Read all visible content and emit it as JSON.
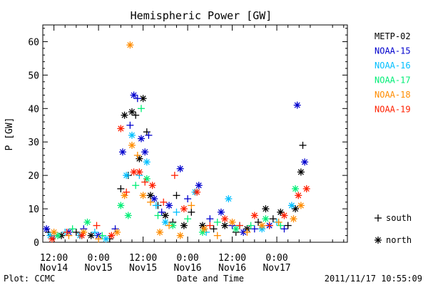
{
  "chart_data": {
    "type": "scatter",
    "title": "Hemispheric Power [GW]",
    "ylabel": "P [GW]",
    "xlabel": "Date and Time",
    "ylim": [
      0,
      65
    ],
    "y_ticks": [
      0,
      10,
      20,
      30,
      40,
      50,
      60
    ],
    "x_unit": "hours since Nov14 00:00",
    "xlim": [
      9,
      91
    ],
    "x_ticks": [
      {
        "x": 12,
        "line1": "12:00",
        "line2": "Nov14"
      },
      {
        "x": 24,
        "line1": "0:00",
        "line2": "Nov15"
      },
      {
        "x": 36,
        "line1": "12:00",
        "line2": "Nov15"
      },
      {
        "x": 48,
        "line1": "0:00",
        "line2": "Nov16"
      },
      {
        "x": 60,
        "line1": "12:00",
        "line2": "Nov16"
      },
      {
        "x": 72,
        "line1": "0:00",
        "line2": "Nov17"
      }
    ],
    "legend": {
      "placement": "right",
      "series_order": [
        "METP-02",
        "NOAA-15",
        "NOAA-16",
        "NOAA-17",
        "NOAA-18",
        "NOAA-19"
      ],
      "markers": [
        {
          "symbol": "+",
          "label": "south"
        },
        {
          "symbol": "*",
          "label": "north"
        }
      ]
    },
    "series": [
      {
        "name": "METP-02",
        "color": "#000000",
        "points": [
          {
            "x": 10.5,
            "y": 3,
            "m": "+"
          },
          {
            "x": 14,
            "y": 2,
            "m": "*"
          },
          {
            "x": 18,
            "y": 3,
            "m": "+"
          },
          {
            "x": 22,
            "y": 2,
            "m": "*"
          },
          {
            "x": 27,
            "y": 1,
            "m": "+"
          },
          {
            "x": 30,
            "y": 16,
            "m": "+"
          },
          {
            "x": 31,
            "y": 38,
            "m": "*"
          },
          {
            "x": 32,
            "y": 20,
            "m": "+"
          },
          {
            "x": 33,
            "y": 39,
            "m": "*"
          },
          {
            "x": 34,
            "y": 38,
            "m": "+"
          },
          {
            "x": 35,
            "y": 25,
            "m": "*"
          },
          {
            "x": 36,
            "y": 43,
            "m": "*"
          },
          {
            "x": 37,
            "y": 33,
            "m": "+"
          },
          {
            "x": 38,
            "y": 14,
            "m": "*"
          },
          {
            "x": 40,
            "y": 11,
            "m": "+"
          },
          {
            "x": 42,
            "y": 8,
            "m": "*"
          },
          {
            "x": 44,
            "y": 6,
            "m": "+"
          },
          {
            "x": 45,
            "y": 14,
            "m": "+"
          },
          {
            "x": 47,
            "y": 5,
            "m": "*"
          },
          {
            "x": 49,
            "y": 9,
            "m": "+"
          },
          {
            "x": 52,
            "y": 5,
            "m": "*"
          },
          {
            "x": 55,
            "y": 4,
            "m": "+"
          },
          {
            "x": 58,
            "y": 5,
            "m": "*"
          },
          {
            "x": 61,
            "y": 3,
            "m": "+"
          },
          {
            "x": 64,
            "y": 4,
            "m": "*"
          },
          {
            "x": 67,
            "y": 6,
            "m": "+"
          },
          {
            "x": 69,
            "y": 10,
            "m": "*"
          },
          {
            "x": 71,
            "y": 7,
            "m": "+"
          },
          {
            "x": 73,
            "y": 9,
            "m": "*"
          },
          {
            "x": 75,
            "y": 5,
            "m": "+"
          },
          {
            "x": 77,
            "y": 10,
            "m": "*"
          },
          {
            "x": 78.5,
            "y": 21,
            "m": "*"
          },
          {
            "x": 79,
            "y": 29,
            "m": "+"
          }
        ]
      },
      {
        "name": "NOAA-15",
        "color": "#0000cd",
        "points": [
          {
            "x": 10,
            "y": 4,
            "m": "*"
          },
          {
            "x": 12,
            "y": 2,
            "m": "+"
          },
          {
            "x": 16,
            "y": 3,
            "m": "*"
          },
          {
            "x": 20,
            "y": 4,
            "m": "+"
          },
          {
            "x": 24,
            "y": 2,
            "m": "*"
          },
          {
            "x": 28.5,
            "y": 4,
            "m": "+"
          },
          {
            "x": 30.5,
            "y": 27,
            "m": "*"
          },
          {
            "x": 32.5,
            "y": 35,
            "m": "+"
          },
          {
            "x": 33.5,
            "y": 44,
            "m": "*"
          },
          {
            "x": 34.5,
            "y": 43,
            "m": "+"
          },
          {
            "x": 35.5,
            "y": 31,
            "m": "*"
          },
          {
            "x": 36.5,
            "y": 27,
            "m": "*"
          },
          {
            "x": 37.5,
            "y": 32,
            "m": "+"
          },
          {
            "x": 39,
            "y": 13,
            "m": "*"
          },
          {
            "x": 41,
            "y": 9,
            "m": "+"
          },
          {
            "x": 43,
            "y": 11,
            "m": "*"
          },
          {
            "x": 46,
            "y": 22,
            "m": "*"
          },
          {
            "x": 48,
            "y": 13,
            "m": "+"
          },
          {
            "x": 51,
            "y": 17,
            "m": "*"
          },
          {
            "x": 54,
            "y": 7,
            "m": "+"
          },
          {
            "x": 57,
            "y": 9,
            "m": "*"
          },
          {
            "x": 60,
            "y": 5,
            "m": "+"
          },
          {
            "x": 63,
            "y": 3,
            "m": "*"
          },
          {
            "x": 66,
            "y": 4,
            "m": "+"
          },
          {
            "x": 70,
            "y": 5,
            "m": "*"
          },
          {
            "x": 74,
            "y": 4,
            "m": "+"
          },
          {
            "x": 77.5,
            "y": 41,
            "m": "*"
          },
          {
            "x": 79.5,
            "y": 24,
            "m": "*"
          }
        ]
      },
      {
        "name": "NOAA-16",
        "color": "#00bfff",
        "points": [
          {
            "x": 11,
            "y": 2,
            "m": "*"
          },
          {
            "x": 15,
            "y": 3,
            "m": "+"
          },
          {
            "x": 19,
            "y": 2,
            "m": "*"
          },
          {
            "x": 23,
            "y": 3,
            "m": "+"
          },
          {
            "x": 26,
            "y": 1,
            "m": "*"
          },
          {
            "x": 31.5,
            "y": 20,
            "m": "*"
          },
          {
            "x": 33,
            "y": 32,
            "m": "*"
          },
          {
            "x": 35,
            "y": 20,
            "m": "+"
          },
          {
            "x": 37,
            "y": 24,
            "m": "*"
          },
          {
            "x": 39.5,
            "y": 11,
            "m": "+"
          },
          {
            "x": 42,
            "y": 6,
            "m": "*"
          },
          {
            "x": 45,
            "y": 9,
            "m": "+"
          },
          {
            "x": 50,
            "y": 15,
            "m": "*"
          },
          {
            "x": 53,
            "y": 3,
            "m": "+"
          },
          {
            "x": 59,
            "y": 13,
            "m": "*"
          },
          {
            "x": 62,
            "y": 5,
            "m": "+"
          },
          {
            "x": 68,
            "y": 4,
            "m": "*"
          },
          {
            "x": 72,
            "y": 6,
            "m": "+"
          },
          {
            "x": 76,
            "y": 11,
            "m": "*"
          }
        ]
      },
      {
        "name": "NOAA-17",
        "color": "#00ee76",
        "points": [
          {
            "x": 13,
            "y": 2,
            "m": "*"
          },
          {
            "x": 17,
            "y": 4,
            "m": "+"
          },
          {
            "x": 21,
            "y": 6,
            "m": "*"
          },
          {
            "x": 25,
            "y": 2,
            "m": "+"
          },
          {
            "x": 30,
            "y": 11,
            "m": "*"
          },
          {
            "x": 32,
            "y": 8,
            "m": "*"
          },
          {
            "x": 34,
            "y": 17,
            "m": "+"
          },
          {
            "x": 35.5,
            "y": 40,
            "m": "+"
          },
          {
            "x": 37,
            "y": 19,
            "m": "*"
          },
          {
            "x": 40,
            "y": 8,
            "m": "+"
          },
          {
            "x": 44,
            "y": 5,
            "m": "*"
          },
          {
            "x": 48,
            "y": 7,
            "m": "+"
          },
          {
            "x": 52,
            "y": 3,
            "m": "*"
          },
          {
            "x": 56,
            "y": 6,
            "m": "+"
          },
          {
            "x": 61,
            "y": 4,
            "m": "*"
          },
          {
            "x": 65,
            "y": 5,
            "m": "+"
          },
          {
            "x": 69,
            "y": 7,
            "m": "*"
          },
          {
            "x": 73,
            "y": 5,
            "m": "+"
          },
          {
            "x": 77,
            "y": 16,
            "m": "*"
          }
        ]
      },
      {
        "name": "NOAA-18",
        "color": "#ff8c00",
        "points": [
          {
            "x": 12,
            "y": 3,
            "m": "*"
          },
          {
            "x": 16,
            "y": 2,
            "m": "+"
          },
          {
            "x": 20,
            "y": 3,
            "m": "*"
          },
          {
            "x": 24,
            "y": 1,
            "m": "+"
          },
          {
            "x": 29,
            "y": 3,
            "m": "*"
          },
          {
            "x": 31,
            "y": 14,
            "m": "*"
          },
          {
            "x": 32.5,
            "y": 59,
            "m": "*"
          },
          {
            "x": 33,
            "y": 29,
            "m": "*"
          },
          {
            "x": 34.5,
            "y": 26,
            "m": "+"
          },
          {
            "x": 36,
            "y": 14,
            "m": "*"
          },
          {
            "x": 38,
            "y": 12,
            "m": "+"
          },
          {
            "x": 40.5,
            "y": 3,
            "m": "*"
          },
          {
            "x": 43,
            "y": 5,
            "m": "+"
          },
          {
            "x": 46,
            "y": 2,
            "m": "*"
          },
          {
            "x": 49,
            "y": 11,
            "m": "+"
          },
          {
            "x": 52.5,
            "y": 4,
            "m": "*"
          },
          {
            "x": 56,
            "y": 2,
            "m": "+"
          },
          {
            "x": 60,
            "y": 6,
            "m": "*"
          },
          {
            "x": 64,
            "y": 3,
            "m": "+"
          },
          {
            "x": 68,
            "y": 5,
            "m": "*"
          },
          {
            "x": 72.5,
            "y": 6,
            "m": "+"
          },
          {
            "x": 76.5,
            "y": 7,
            "m": "*"
          },
          {
            "x": 78.5,
            "y": 11,
            "m": "*"
          }
        ]
      },
      {
        "name": "NOAA-19",
        "color": "#ff2000",
        "points": [
          {
            "x": 11.5,
            "y": 1,
            "m": "*"
          },
          {
            "x": 15.5,
            "y": 3,
            "m": "+"
          },
          {
            "x": 19.5,
            "y": 2,
            "m": "*"
          },
          {
            "x": 23.5,
            "y": 5,
            "m": "+"
          },
          {
            "x": 27.5,
            "y": 2,
            "m": "*"
          },
          {
            "x": 30,
            "y": 34,
            "m": "*"
          },
          {
            "x": 31.5,
            "y": 15,
            "m": "+"
          },
          {
            "x": 33.5,
            "y": 21,
            "m": "*"
          },
          {
            "x": 35,
            "y": 21,
            "m": "*"
          },
          {
            "x": 36.5,
            "y": 18,
            "m": "+"
          },
          {
            "x": 38.5,
            "y": 17,
            "m": "*"
          },
          {
            "x": 41.5,
            "y": 12,
            "m": "+"
          },
          {
            "x": 44.5,
            "y": 20,
            "m": "+"
          },
          {
            "x": 47,
            "y": 10,
            "m": "*"
          },
          {
            "x": 50.5,
            "y": 15,
            "m": "*"
          },
          {
            "x": 54,
            "y": 5,
            "m": "+"
          },
          {
            "x": 58,
            "y": 7,
            "m": "*"
          },
          {
            "x": 62,
            "y": 5,
            "m": "+"
          },
          {
            "x": 66,
            "y": 8,
            "m": "*"
          },
          {
            "x": 70,
            "y": 5,
            "m": "+"
          },
          {
            "x": 74,
            "y": 8,
            "m": "*"
          },
          {
            "x": 77.8,
            "y": 14,
            "m": "*"
          },
          {
            "x": 80,
            "y": 16,
            "m": "*"
          }
        ]
      }
    ]
  },
  "footer": {
    "left": "Plot: CCMC",
    "right": "2011/11/17 10:55:09"
  }
}
